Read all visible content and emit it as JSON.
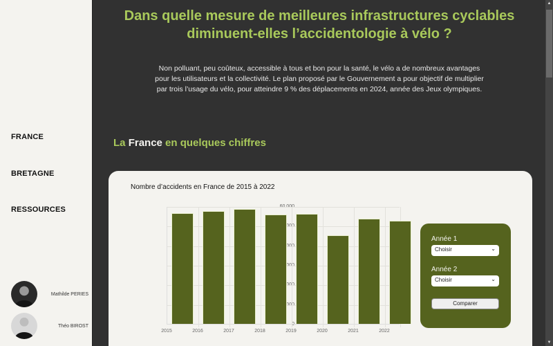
{
  "sidebar": {
    "nav": [
      {
        "label": "FRANCE"
      },
      {
        "label": "BRETAGNE"
      },
      {
        "label": "RESSOURCES"
      }
    ],
    "authors": [
      {
        "name": "Mathilde PERIES"
      },
      {
        "name": "Théo BIROST"
      }
    ]
  },
  "header": {
    "title_line1": "Dans quelle mesure de meilleures infrastructures cyclables",
    "title_line2": "diminuent-elles l’accidentologie à vélo ?",
    "intro_line1": "Non polluant, peu coûteux, accessible à tous et bon pour la santé, le vélo a de nombreux avantages",
    "intro_line2": "pour les utilisateurs et la collectivité. Le plan proposé par le Gouvernement a pour objectif de multiplier",
    "intro_line3": "par trois l’usage du vélo, pour atteindre 9 % des déplacements en 2024, année des Jeux olympiques."
  },
  "section": {
    "title_prefix": "La ",
    "title_highlight": "France",
    "title_suffix": " en quelques chiffres"
  },
  "chart": {
    "title": "Nombre d’accidents en France de 2015 à 2022",
    "y_ticks": [
      "60 000",
      "50 000",
      "40 000",
      "30 000",
      "20 000",
      "10 000",
      "0"
    ],
    "x_ticks": [
      "2015",
      "2016",
      "2017",
      "2018",
      "2019",
      "2020",
      "2021",
      "2022"
    ]
  },
  "compare": {
    "year1_label": "Année 1",
    "year1_value": "Choisir",
    "year2_label": "Année 2",
    "year2_value": "Choisir",
    "button_label": "Comparer"
  },
  "colors": {
    "accent": "#a9c95b",
    "bar": "#55631e",
    "background": "#313131",
    "card": "#f4f3ef"
  },
  "chart_data": {
    "type": "bar",
    "title": "Nombre d’accidents en France de 2015 à 2022",
    "categories": [
      "2015",
      "2016",
      "2017",
      "2018",
      "2019",
      "2020",
      "2021",
      "2022"
    ],
    "values": [
      56500,
      57500,
      58600,
      55800,
      56100,
      45200,
      53600,
      52500
    ],
    "xlabel": "",
    "ylabel": "",
    "ylim": [
      0,
      60000
    ],
    "y_ticks": [
      0,
      10000,
      20000,
      30000,
      40000,
      50000,
      60000
    ],
    "grid": true,
    "legend": false
  }
}
